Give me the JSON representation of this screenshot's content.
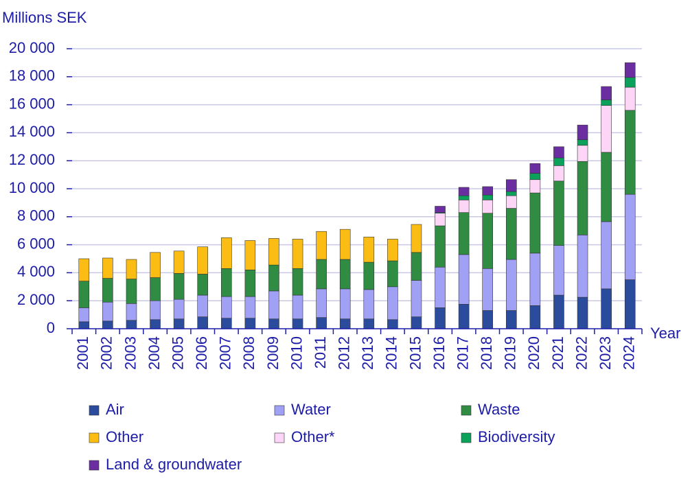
{
  "chart_data": {
    "type": "stacked_bar",
    "y_label": "Millions SEK",
    "x_label": "Year",
    "categories": [
      "2001",
      "2002",
      "2003",
      "2004",
      "2005",
      "2006",
      "2007",
      "2008",
      "2009",
      "2010",
      "2011",
      "2012",
      "2013",
      "2014",
      "2015",
      "2016",
      "2017",
      "2018",
      "2019",
      "2020",
      "2021",
      "2022",
      "2023",
      "2024"
    ],
    "series": [
      {
        "name": "Air",
        "color": "#2b4c9c",
        "values": [
          500,
          550,
          600,
          650,
          700,
          850,
          750,
          750,
          700,
          700,
          800,
          700,
          700,
          650,
          850,
          1500,
          1750,
          1300,
          1300,
          1650,
          2400,
          2250,
          2850,
          3500
        ]
      },
      {
        "name": "Water",
        "color": "#a0a1f5",
        "values": [
          1000,
          1350,
          1200,
          1350,
          1400,
          1550,
          1550,
          1550,
          2000,
          1700,
          2050,
          2150,
          2100,
          2350,
          2600,
          2900,
          3550,
          3000,
          3650,
          3750,
          3550,
          4450,
          4800,
          6100
        ]
      },
      {
        "name": "Waste",
        "color": "#2f8c42",
        "values": [
          1900,
          1700,
          1750,
          1650,
          1850,
          1500,
          2000,
          1900,
          1850,
          1900,
          2100,
          2100,
          1950,
          1850,
          2000,
          2950,
          3000,
          3950,
          3650,
          4300,
          4600,
          5250,
          4950,
          6000
        ]
      },
      {
        "name": "Other",
        "color": "#fbbd13",
        "values": [
          1600,
          1450,
          1400,
          1800,
          1600,
          1950,
          2200,
          2100,
          1900,
          2100,
          2000,
          2150,
          1800,
          1550,
          2000,
          null,
          null,
          null,
          null,
          null,
          null,
          null,
          null,
          null
        ]
      },
      {
        "name": "Other*",
        "color": "#fdd5f6",
        "values": [
          null,
          null,
          null,
          null,
          null,
          null,
          null,
          null,
          null,
          null,
          null,
          null,
          null,
          null,
          null,
          900,
          900,
          950,
          900,
          950,
          1100,
          1150,
          3350,
          1650
        ]
      },
      {
        "name": "Biodiversity",
        "color": "#0ba15a",
        "values": [
          null,
          null,
          null,
          null,
          null,
          null,
          null,
          null,
          null,
          null,
          null,
          null,
          null,
          null,
          null,
          50,
          300,
          350,
          300,
          450,
          550,
          400,
          400,
          700
        ]
      },
      {
        "name": "Land & groundwater",
        "color": "#6a2ea0",
        "values": [
          null,
          null,
          null,
          null,
          null,
          null,
          null,
          null,
          null,
          null,
          null,
          null,
          null,
          null,
          null,
          450,
          600,
          600,
          850,
          700,
          800,
          1050,
          950,
          1050
        ]
      }
    ],
    "ylim": [
      0,
      20000
    ],
    "yticks": [
      0,
      {
        "value": 2000,
        "label": "2 000"
      },
      {
        "value": 4000,
        "label": "4 000"
      },
      {
        "value": 6000,
        "label": "6 000"
      },
      {
        "value": 8000,
        "label": "8 000"
      },
      {
        "value": 10000,
        "label": "10 000"
      },
      {
        "value": 12000,
        "label": "12 000"
      },
      {
        "value": 14000,
        "label": "14 000"
      },
      {
        "value": 16000,
        "label": "16 000"
      },
      {
        "value": 18000,
        "label": "18 000"
      },
      {
        "value": 20000,
        "label": "20 000"
      }
    ],
    "grid": true
  }
}
